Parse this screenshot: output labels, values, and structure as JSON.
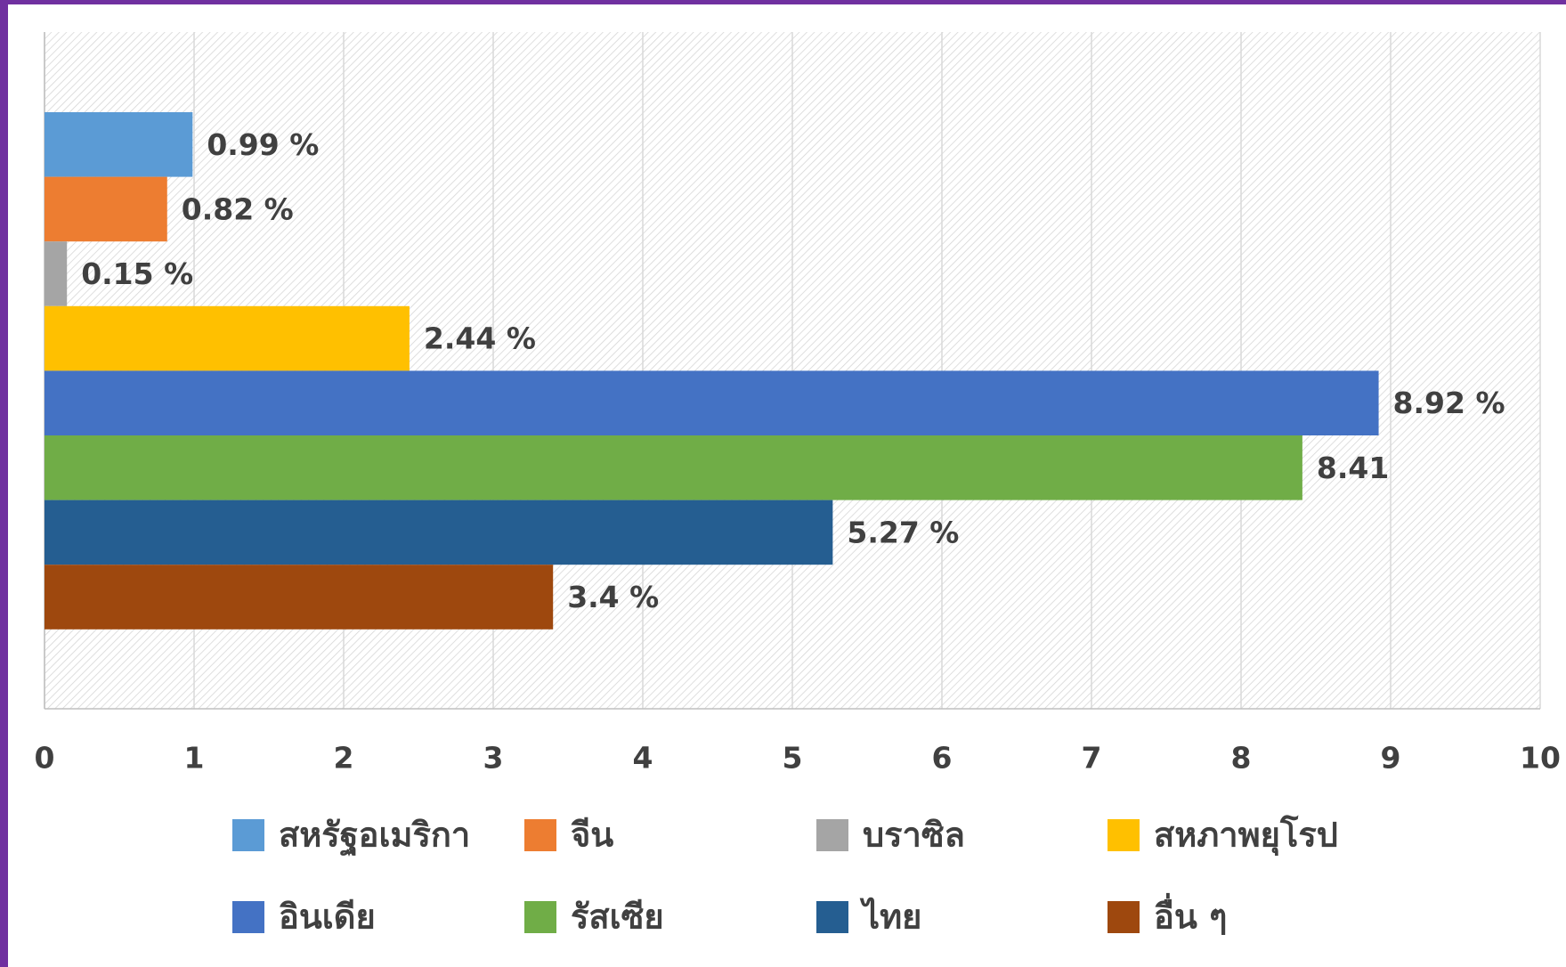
{
  "chart_data": {
    "type": "bar",
    "orientation": "horizontal",
    "categories": [
      null
    ],
    "series": [
      {
        "name": "สหรัฐอเมริกา",
        "color": "#5b9bd5",
        "values": [
          0.99
        ],
        "value_labels": [
          "0.99 %"
        ]
      },
      {
        "name": "จีน",
        "color": "#ed7d31",
        "values": [
          0.82
        ],
        "value_labels": [
          "0.82 %"
        ]
      },
      {
        "name": "บราซิล",
        "color": "#a5a5a5",
        "values": [
          0.15
        ],
        "value_labels": [
          "0.15 %"
        ]
      },
      {
        "name": "สหภาพยุโรป",
        "color": "#ffc000",
        "values": [
          2.44
        ],
        "value_labels": [
          "2.44 %"
        ]
      },
      {
        "name": "อินเดีย",
        "color": "#4472c4",
        "values": [
          8.92
        ],
        "value_labels": [
          "8.92 %"
        ]
      },
      {
        "name": "รัสเซีย",
        "color": "#70ad47",
        "values": [
          8.41
        ]
      },
      {
        "name": "ไทย",
        "color": "#255e91",
        "values": [
          5.27
        ],
        "value_labels": [
          "5.27 %"
        ]
      },
      {
        "name": "อื่น ๆ",
        "color": "#9e480e",
        "values": [
          3.4
        ],
        "value_labels": [
          "3.4 %"
        ]
      }
    ],
    "xlim": [
      0,
      10
    ],
    "xticks": [
      0,
      1,
      2,
      3,
      4,
      5,
      6,
      7,
      8,
      9,
      10
    ],
    "grid": true,
    "legend": "bottom"
  }
}
